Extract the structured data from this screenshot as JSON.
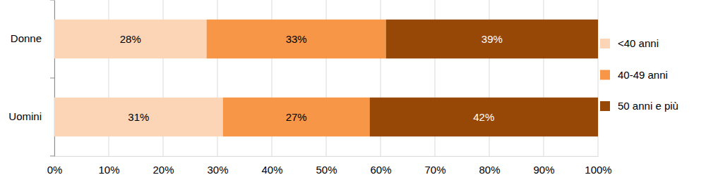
{
  "chart_data": {
    "type": "bar",
    "orientation": "horizontal",
    "stacked": true,
    "data_labels": true,
    "grid": true,
    "legend": "right",
    "categories": [
      "Donne",
      "Uomini"
    ],
    "series": [
      {
        "name": "<40 anni",
        "color": "#fbd5b5",
        "values": [
          28,
          31
        ],
        "value_labels": [
          "28%",
          "31%"
        ]
      },
      {
        "name": "40-49 anni",
        "color": "#f79646",
        "values": [
          33,
          27
        ],
        "value_labels": [
          "33%",
          "27%"
        ]
      },
      {
        "name": "50 anni e più",
        "color": "#974806",
        "values": [
          39,
          42
        ],
        "value_labels": [
          "39%",
          "42%"
        ]
      }
    ],
    "xlim": [
      0,
      100
    ],
    "xticks": [
      {
        "value": 0,
        "label": "0%"
      },
      {
        "value": 10,
        "label": "10%"
      },
      {
        "value": 20,
        "label": "20%"
      },
      {
        "value": 30,
        "label": "30%"
      },
      {
        "value": 40,
        "label": "40%"
      },
      {
        "value": 50,
        "label": "50%"
      },
      {
        "value": 60,
        "label": "60%"
      },
      {
        "value": 70,
        "label": "70%"
      },
      {
        "value": 80,
        "label": "80%"
      },
      {
        "value": 90,
        "label": "90%"
      },
      {
        "value": 100,
        "label": "100%"
      }
    ]
  }
}
